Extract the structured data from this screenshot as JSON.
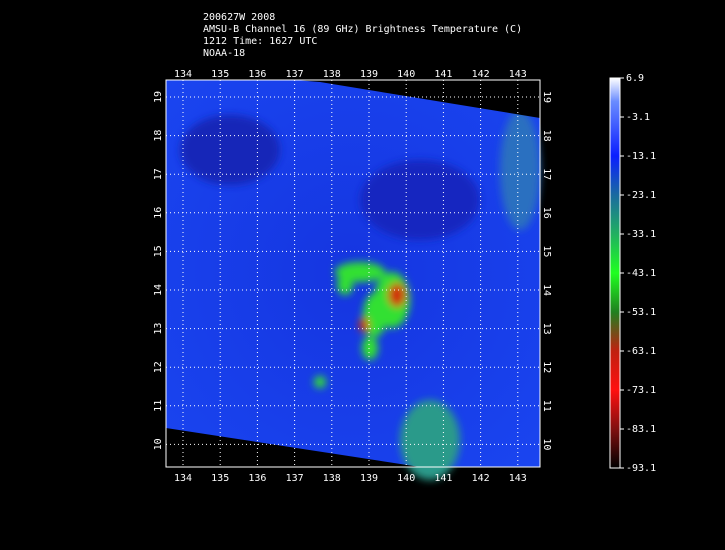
{
  "header": {
    "lines": [
      "200627W 2008",
      "AMSU-B Channel 16 (89 GHz) Brightness Temperature (C)",
      "1212 Time: 1627 UTC",
      "NOAA-18"
    ]
  },
  "map": {
    "lon_labels": [
      "134",
      "135",
      "136",
      "137",
      "138",
      "139",
      "140",
      "141",
      "142",
      "143"
    ],
    "lat_labels": [
      "19",
      "18",
      "17",
      "16",
      "15",
      "14",
      "13",
      "12",
      "11",
      "10"
    ]
  },
  "colorbar": {
    "labels": [
      "6.9",
      "-3.1",
      "-13.1",
      "-23.1",
      "-33.1",
      "-43.1",
      "-53.1",
      "-63.1",
      "-73.1",
      "-83.1",
      "-93.1"
    ]
  }
}
